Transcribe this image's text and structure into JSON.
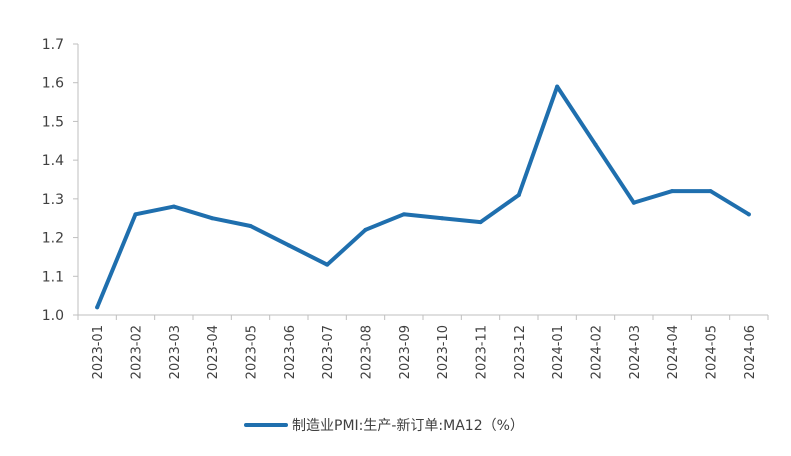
{
  "chart_data": {
    "type": "line",
    "categories": [
      "2023-01",
      "2023-02",
      "2023-03",
      "2023-04",
      "2023-05",
      "2023-06",
      "2023-07",
      "2023-08",
      "2023-09",
      "2023-10",
      "2023-11",
      "2023-12",
      "2024-01",
      "2024-02",
      "2024-03",
      "2024-04",
      "2024-05",
      "2024-06"
    ],
    "series": [
      {
        "name": "制造业PMI:生产-新订单:MA12（%）",
        "color": "#1F6FAE",
        "values": [
          1.02,
          1.26,
          1.28,
          1.25,
          1.23,
          1.18,
          1.13,
          1.22,
          1.26,
          1.25,
          1.24,
          1.31,
          1.59,
          1.44,
          1.29,
          1.32,
          1.32,
          1.26
        ]
      }
    ],
    "title": "",
    "xlabel": "",
    "ylabel": "",
    "ylim": [
      1.0,
      1.7
    ],
    "yticks": [
      "1.0",
      "1.1",
      "1.2",
      "1.3",
      "1.4",
      "1.5",
      "1.6",
      "1.7"
    ],
    "grid": false,
    "legend": "bottom"
  }
}
